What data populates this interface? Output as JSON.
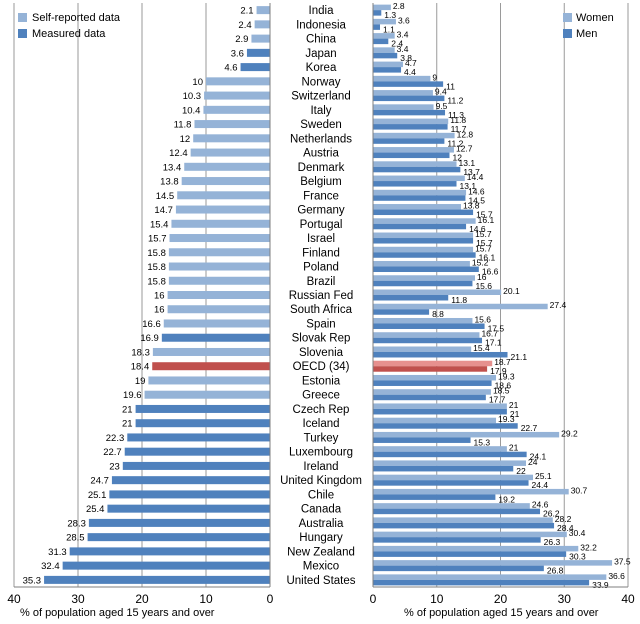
{
  "chart_data": [
    {
      "type": "bar",
      "orientation": "horizontal-reversed",
      "xlabel": "% of population aged 15 years and over",
      "xlim": [
        0,
        40
      ],
      "xticks": [
        40,
        30,
        20,
        10,
        0
      ],
      "grid": true,
      "legend": "top-left",
      "categories": [
        "India",
        "Indonesia",
        "China",
        "Japan",
        "Korea",
        "Norway",
        "Switzerland",
        "Italy",
        "Sweden",
        "Netherlands",
        "Austria",
        "Denmark",
        "Belgium",
        "France",
        "Germany",
        "Portugal",
        "Israel",
        "Finland",
        "Poland",
        "Brazil",
        "Russian Fed",
        "South Africa",
        "Spain",
        "Slovak Rep",
        "Slovenia",
        "OECD (34)",
        "Estonia",
        "Greece",
        "Czech Rep",
        "Iceland",
        "Turkey",
        "Luxembourg",
        "Ireland",
        "United Kingdom",
        "Chile",
        "Canada",
        "Australia",
        "Hungary",
        "New Zealand",
        "Mexico",
        "United States"
      ],
      "values": [
        2.1,
        2.4,
        2.9,
        3.6,
        4.6,
        10,
        10.3,
        10.4,
        11.8,
        12,
        12.4,
        13.4,
        13.8,
        14.5,
        14.7,
        15.4,
        15.7,
        15.8,
        15.8,
        15.8,
        16,
        16,
        16.6,
        16.9,
        18.3,
        18.4,
        19,
        19.6,
        21,
        21,
        22.3,
        22.7,
        23,
        24.7,
        25.1,
        25.4,
        28.3,
        28.5,
        31.3,
        32.4,
        35.3
      ],
      "data_type": [
        "self",
        "self",
        "self",
        "measured",
        "measured",
        "self",
        "self",
        "self",
        "self",
        "self",
        "self",
        "self",
        "self",
        "self",
        "self",
        "self",
        "self",
        "self",
        "self",
        "self",
        "self",
        "self",
        "self",
        "measured",
        "self",
        "oecd",
        "self",
        "self",
        "measured",
        "measured",
        "measured",
        "measured",
        "measured",
        "measured",
        "measured",
        "measured",
        "measured",
        "measured",
        "measured",
        "measured",
        "measured"
      ],
      "legend_entries": [
        {
          "label": "Self-reported data",
          "color": "#95b3d7"
        },
        {
          "label": "Measured data",
          "color": "#4f81bd"
        }
      ]
    },
    {
      "type": "bar",
      "orientation": "horizontal",
      "xlabel": "% of population aged 15 years and over",
      "xlim": [
        0,
        40
      ],
      "xticks": [
        0,
        10,
        20,
        30,
        40
      ],
      "grid": true,
      "legend": "top-right",
      "categories": [
        "India",
        "Indonesia",
        "China",
        "Japan",
        "Korea",
        "Norway",
        "Switzerland",
        "Italy",
        "Sweden",
        "Netherlands",
        "Austria",
        "Denmark",
        "Belgium",
        "France",
        "Germany",
        "Portugal",
        "Israel",
        "Finland",
        "Poland",
        "Brazil",
        "Russian Fed",
        "South Africa",
        "Spain",
        "Slovak Rep",
        "Slovenia",
        "OECD (34)",
        "Estonia",
        "Greece",
        "Czech Rep",
        "Iceland",
        "Turkey",
        "Luxembourg",
        "Ireland",
        "United Kingdom",
        "Chile",
        "Canada",
        "Australia",
        "Hungary",
        "New Zealand",
        "Mexico",
        "United States"
      ],
      "series": [
        {
          "name": "Women",
          "color": "#95b3d7",
          "values": [
            2.8,
            3.6,
            3.4,
            3.4,
            4.7,
            9,
            9.4,
            9.5,
            11.8,
            12.8,
            12.7,
            13.1,
            14.4,
            14.6,
            13.8,
            16.1,
            15.7,
            15.7,
            15.2,
            16,
            20.1,
            27.4,
            15.6,
            16.7,
            15.4,
            18.7,
            19.3,
            18.5,
            21,
            19.3,
            29.2,
            21,
            24,
            25.1,
            30.7,
            24.6,
            28.2,
            30.4,
            32.2,
            37.5,
            36.6
          ]
        },
        {
          "name": "Men",
          "color": "#4f81bd",
          "values": [
            1.3,
            1.1,
            2.4,
            3.8,
            4.4,
            11,
            11.2,
            11.3,
            11.7,
            11.2,
            12,
            13.7,
            13.1,
            14.5,
            15.7,
            14.6,
            15.7,
            16.1,
            16.6,
            15.6,
            11.8,
            8.8,
            17.5,
            17.1,
            21.1,
            17.9,
            18.6,
            17.7,
            21,
            22.7,
            15.3,
            24.1,
            22,
            24.4,
            19.2,
            26.2,
            28.4,
            26.3,
            30.3,
            26.8,
            33.9
          ]
        }
      ],
      "oecd_colors": {
        "women": "#e6908e",
        "men": "#c0504d"
      }
    }
  ],
  "legend_left": {
    "self_reported": "Self-reported data",
    "measured": "Measured data"
  },
  "legend_right": {
    "women": "Women",
    "men": "Men"
  }
}
